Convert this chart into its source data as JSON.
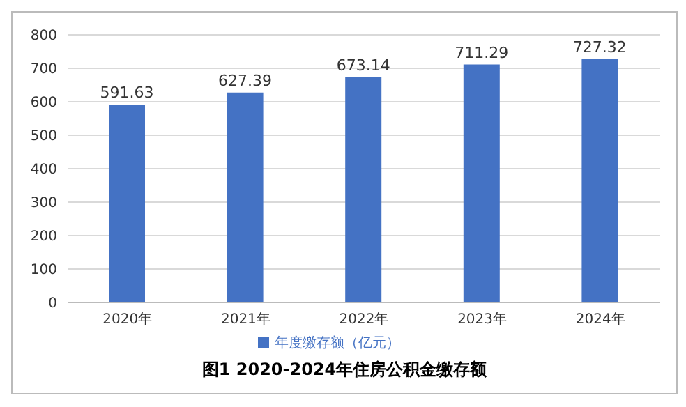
{
  "chart_data": {
    "type": "bar",
    "title": "图1 2020-2024年住房公积金缴存额",
    "categories": [
      "2020年",
      "2021年",
      "2022年",
      "2023年",
      "2024年"
    ],
    "series": [
      {
        "name": "年度缴存额（亿元）",
        "color": "#4472c4",
        "values": [
          591.63,
          627.39,
          673.14,
          711.29,
          727.32
        ]
      }
    ],
    "ylim": [
      0,
      800
    ],
    "yticks": [
      0,
      100,
      200,
      300,
      400,
      500,
      600,
      700,
      800
    ],
    "grid": "y",
    "legend": "bottom",
    "data_labels": true
  }
}
